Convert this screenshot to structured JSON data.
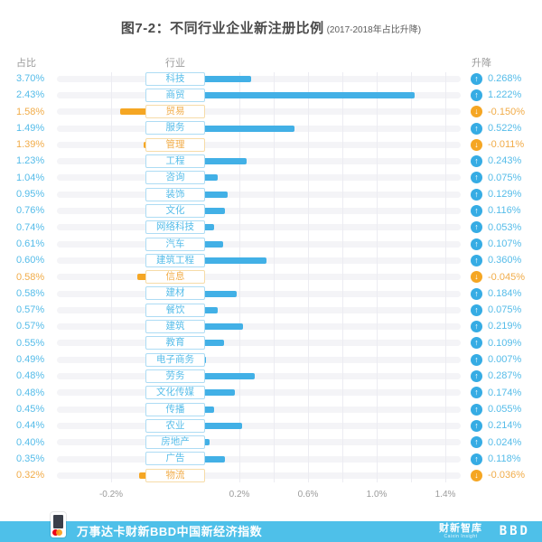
{
  "title": {
    "text": "图7-2：不同行业企业新注册比例",
    "subtitle": "(2017-2018年占比升降)"
  },
  "columns": {
    "share": "占比",
    "industry": "行业",
    "change": "升降"
  },
  "chart_data": {
    "type": "bar",
    "orientation": "horizontal",
    "diverging": true,
    "title": "图7-2：不同行业企业新注册比例 (2017-2018年占比升降)",
    "categories": [
      "科技",
      "商贸",
      "贸易",
      "服务",
      "管理",
      "工程",
      "咨询",
      "装饰",
      "文化",
      "网络科技",
      "汽车",
      "建筑工程",
      "信息",
      "建材",
      "餐饮",
      "建筑",
      "教育",
      "电子商务",
      "劳务",
      "文化传媒",
      "传播",
      "农业",
      "房地产",
      "广告",
      "物流"
    ],
    "series": [
      {
        "name": "占比",
        "values": [
          "3.70%",
          "2.43%",
          "1.58%",
          "1.49%",
          "1.39%",
          "1.23%",
          "1.04%",
          "0.95%",
          "0.76%",
          "0.74%",
          "0.61%",
          "0.60%",
          "0.58%",
          "0.58%",
          "0.57%",
          "0.57%",
          "0.55%",
          "0.49%",
          "0.48%",
          "0.48%",
          "0.45%",
          "0.44%",
          "0.40%",
          "0.35%",
          "0.32%"
        ]
      },
      {
        "name": "升降",
        "values": [
          0.268,
          1.222,
          -0.15,
          0.522,
          -0.011,
          0.243,
          0.075,
          0.129,
          0.116,
          0.053,
          0.107,
          0.36,
          -0.045,
          0.184,
          0.075,
          0.219,
          0.109,
          0.007,
          0.287,
          0.174,
          0.055,
          0.214,
          0.024,
          0.118,
          -0.036
        ]
      }
    ],
    "change_labels": [
      "0.268%",
      "1.222%",
      "-0.150%",
      "0.522%",
      "-0.011%",
      "0.243%",
      "0.075%",
      "0.129%",
      "0.116%",
      "0.053%",
      "0.107%",
      "0.360%",
      "-0.045%",
      "0.184%",
      "0.075%",
      "0.219%",
      "0.109%",
      "0.007%",
      "0.287%",
      "0.174%",
      "0.055%",
      "0.214%",
      "0.024%",
      "0.118%",
      "-0.036%"
    ],
    "x_ticks": [
      "-0.2%",
      "0.2%",
      "0.6%",
      "1.0%",
      "1.4%"
    ],
    "x_tick_values": [
      -0.2,
      0.2,
      0.6,
      1.0,
      1.4
    ],
    "grid_values_positive": [
      0.2,
      0.4,
      0.6,
      0.8,
      1.0,
      1.2,
      1.4
    ],
    "grid_values_negative": [
      -0.2
    ],
    "xlim": [
      -0.45,
      1.49
    ],
    "legend": "none",
    "bar_color_positive": "#42B0E6",
    "bar_color_negative": "#F5A623"
  },
  "footer": {
    "text": "万事达卡财新BBD中国新经济指数",
    "logo_caixin": "财新智库",
    "logo_caixin_sub": "Caixin Insight",
    "logo_bbd": "BBD"
  },
  "icons": {
    "positive": "up-arrow-icon",
    "negative": "down-arrow-icon",
    "up_glyph": "↑",
    "down_glyph": "↓"
  },
  "colors": {
    "positive_bar": "#42B0E6",
    "negative_bar": "#F5A623",
    "positive_text": "#55BCE9",
    "negative_text": "#F1AC49",
    "positive_icon": "#36ACE4",
    "positive_box_border": "#ADDCF4",
    "negative_box_border": "#F6DCA8",
    "track": "#F4F4F7",
    "gridline": "#ECECF2",
    "header_text": "#9B9B9B",
    "title_text": "#4A4A4A",
    "footer_bg": "#4EC0E9",
    "footer_text": "#FFFFFF"
  }
}
